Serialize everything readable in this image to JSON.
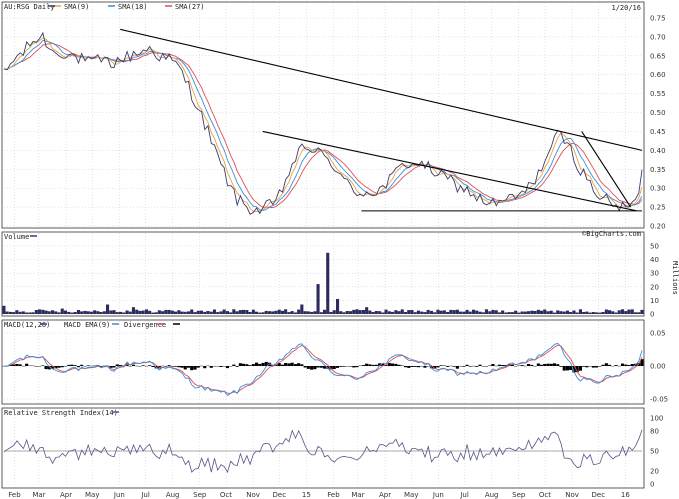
{
  "chart_data": [
    {
      "type": "line",
      "panel": "price",
      "title": "AU:RSG Daily",
      "date": "1/20/16",
      "watermark": "©BigCharts.com",
      "legend": [
        {
          "name": "SMA(9)",
          "color": "#e8a33c"
        },
        {
          "name": "SMA(18)",
          "color": "#3a8fd8"
        },
        {
          "name": "SMA(27)",
          "color": "#e05050"
        }
      ],
      "y_ticks": [
        "0.75",
        "0.70",
        "0.65",
        "0.60",
        "0.55",
        "0.50",
        "0.45",
        "0.40",
        "0.35",
        "0.30",
        "0.25",
        "0.20"
      ],
      "ylim": [
        0.2,
        0.75
      ],
      "price_anchors": [
        [
          0,
          0.6
        ],
        [
          3,
          0.64
        ],
        [
          6,
          0.66
        ],
        [
          9,
          0.69
        ],
        [
          12,
          0.7
        ],
        [
          15,
          0.66
        ],
        [
          18,
          0.66
        ],
        [
          21,
          0.65
        ],
        [
          24,
          0.64
        ],
        [
          27,
          0.63
        ],
        [
          30,
          0.64
        ],
        [
          33,
          0.63
        ],
        [
          36,
          0.64
        ],
        [
          39,
          0.65
        ],
        [
          42,
          0.66
        ],
        [
          45,
          0.67
        ],
        [
          48,
          0.65
        ],
        [
          51,
          0.64
        ],
        [
          54,
          0.62
        ],
        [
          57,
          0.57
        ],
        [
          60,
          0.51
        ],
        [
          63,
          0.45
        ],
        [
          66,
          0.38
        ],
        [
          69,
          0.32
        ],
        [
          72,
          0.27
        ],
        [
          75,
          0.25
        ],
        [
          78,
          0.24
        ],
        [
          81,
          0.25
        ],
        [
          84,
          0.26
        ],
        [
          87,
          0.32
        ],
        [
          90,
          0.38
        ],
        [
          93,
          0.41
        ],
        [
          96,
          0.4
        ],
        [
          99,
          0.38
        ],
        [
          102,
          0.36
        ],
        [
          105,
          0.32
        ],
        [
          108,
          0.29
        ],
        [
          111,
          0.29
        ],
        [
          114,
          0.29
        ],
        [
          117,
          0.3
        ],
        [
          120,
          0.33
        ],
        [
          123,
          0.36
        ],
        [
          126,
          0.37
        ],
        [
          129,
          0.36
        ],
        [
          132,
          0.35
        ],
        [
          135,
          0.33
        ],
        [
          138,
          0.32
        ],
        [
          141,
          0.3
        ],
        [
          144,
          0.29
        ],
        [
          147,
          0.27
        ],
        [
          150,
          0.26
        ],
        [
          153,
          0.26
        ],
        [
          156,
          0.27
        ],
        [
          159,
          0.28
        ],
        [
          162,
          0.3
        ],
        [
          165,
          0.34
        ],
        [
          168,
          0.39
        ],
        [
          171,
          0.44
        ],
        [
          173,
          0.43
        ],
        [
          175,
          0.4
        ],
        [
          178,
          0.35
        ],
        [
          181,
          0.31
        ],
        [
          184,
          0.28
        ],
        [
          187,
          0.26
        ],
        [
          190,
          0.25
        ],
        [
          193,
          0.25
        ],
        [
          195,
          0.26
        ],
        [
          197,
          0.34
        ]
      ],
      "trendlines": [
        {
          "from": [
            "2014-06-02",
            0.72
          ],
          "to": [
            "2016-01-20",
            0.4
          ]
        },
        {
          "from": [
            "2014-11-12",
            0.45
          ],
          "to": [
            "2016-01-14",
            0.24
          ]
        },
        {
          "from": [
            "2015-03-05",
            0.24
          ],
          "to": [
            "2016-01-20",
            0.24
          ]
        },
        {
          "from": [
            "2015-11-12",
            0.45
          ],
          "to": [
            "2016-01-07",
            0.25
          ]
        }
      ]
    },
    {
      "type": "bar",
      "panel": "volume",
      "title": "Volume",
      "unit": "Millions",
      "y_ticks": [
        "50",
        "40",
        "30",
        "20",
        "10",
        "0"
      ],
      "ylim": [
        0,
        50
      ],
      "spikes": [
        [
          0,
          6
        ],
        [
          18,
          4
        ],
        [
          32,
          7
        ],
        [
          40,
          5
        ],
        [
          50,
          3
        ],
        [
          74,
          3
        ],
        [
          92,
          7
        ],
        [
          97,
          22
        ],
        [
          100,
          45
        ],
        [
          103,
          11
        ],
        [
          112,
          5
        ],
        [
          131,
          3
        ],
        [
          151,
          3
        ],
        [
          168,
          2
        ],
        [
          188,
          2
        ],
        [
          197,
          3
        ]
      ]
    },
    {
      "type": "line",
      "panel": "macd",
      "title": "MACD(12,26)",
      "legend": [
        {
          "name": "MACD(12,26)",
          "color": "#3a8fd8"
        },
        {
          "name": "MACD EMA(9)",
          "color": "#e05050"
        },
        {
          "name": "Divergence",
          "color": "#000000"
        }
      ],
      "y_ticks": [
        "0.05",
        "0.00",
        "-0.05"
      ],
      "ylim": [
        -0.05,
        0.05
      ]
    },
    {
      "type": "line",
      "panel": "rsi",
      "title": "Relative Strength Index(14)",
      "y_ticks": [
        "100",
        "80",
        "50",
        "20",
        "0"
      ],
      "ylim": [
        0,
        100
      ],
      "reference_lines": [
        50
      ]
    }
  ],
  "x_axis": {
    "labels": [
      "Feb",
      "Mar",
      "Apr",
      "May",
      "Jun",
      "Jul",
      "Aug",
      "Sep",
      "Oct",
      "Nov",
      "Dec",
      "15",
      "Feb",
      "Mar",
      "Apr",
      "May",
      "Jun",
      "Jul",
      "Aug",
      "Sep",
      "Oct",
      "Nov",
      "Dec",
      "16"
    ],
    "start": "2014-01-20",
    "end": "2016-01-20"
  },
  "colors": {
    "price": "#3a3a72",
    "sma9": "#e8a33c",
    "sma18": "#3a8fd8",
    "sma27": "#e05050",
    "volume": "#2b2b5e",
    "macd_hist": "#000000",
    "rsi": "#55558a",
    "trendline": "#000000"
  }
}
